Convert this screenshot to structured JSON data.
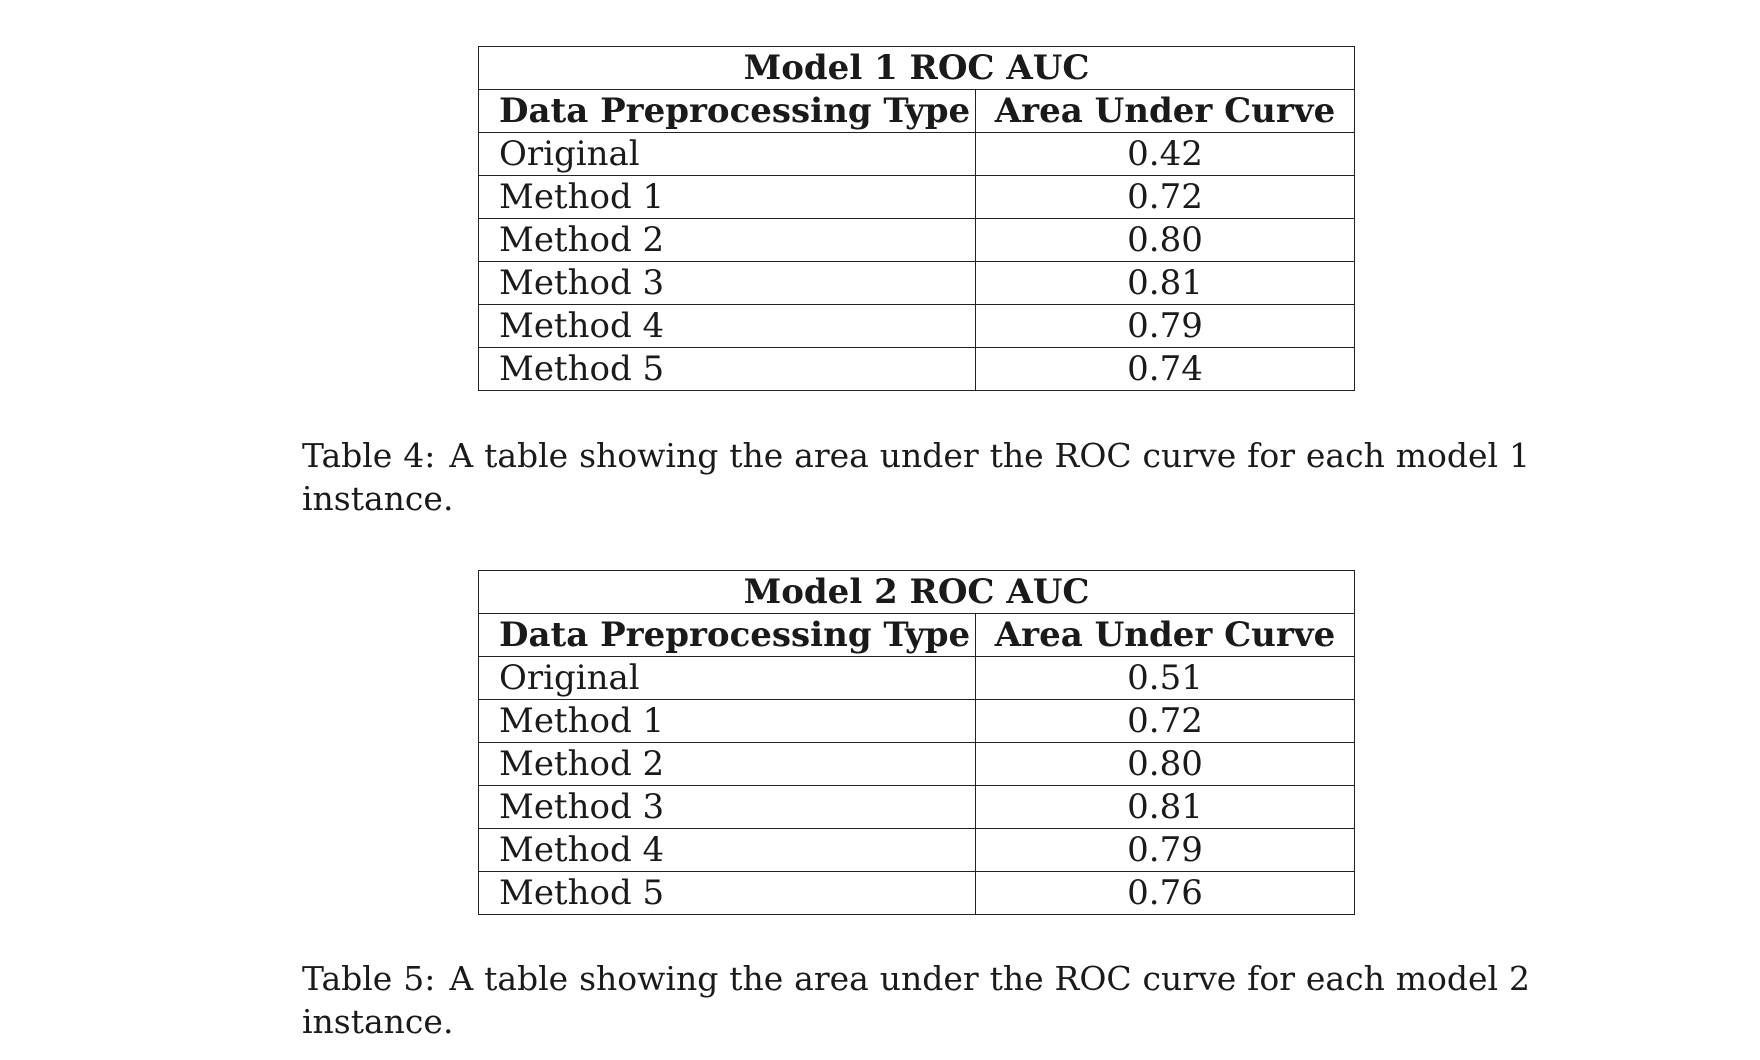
{
  "tables": [
    {
      "title": "Model 1 ROC AUC",
      "headers": [
        "Data Preprocessing Type",
        "Area Under Curve"
      ],
      "rows": [
        [
          "Original",
          "0.42"
        ],
        [
          "Method 1",
          "0.72"
        ],
        [
          "Method 2",
          "0.80"
        ],
        [
          "Method 3",
          "0.81"
        ],
        [
          "Method 4",
          "0.79"
        ],
        [
          "Method 5",
          "0.74"
        ]
      ],
      "caption_label": "Table 4:",
      "caption_text": "A table showing the area under the ROC curve for each model 1 instance."
    },
    {
      "title": "Model 2 ROC AUC",
      "headers": [
        "Data Preprocessing Type",
        "Area Under Curve"
      ],
      "rows": [
        [
          "Original",
          "0.51"
        ],
        [
          "Method 1",
          "0.72"
        ],
        [
          "Method 2",
          "0.80"
        ],
        [
          "Method 3",
          "0.81"
        ],
        [
          "Method 4",
          "0.79"
        ],
        [
          "Method 5",
          "0.76"
        ]
      ],
      "caption_label": "Table 5:",
      "caption_text": "A table showing the area under the ROC curve for each model 2 instance."
    }
  ]
}
